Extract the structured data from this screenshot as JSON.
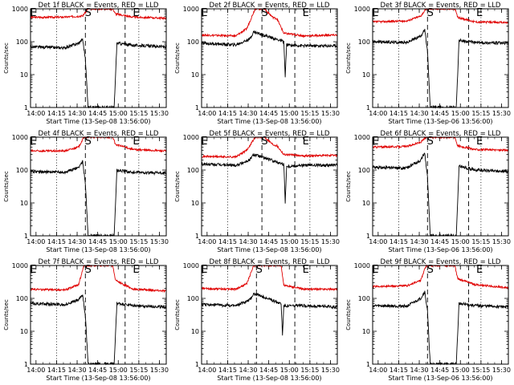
{
  "chart_data": [
    {
      "type": "line",
      "title": "Det 1f BLACK = Events, RED = LLD",
      "xlabel": "Start Time (13-Sep-08 13:56:00)",
      "ylabel": "Counts/sec",
      "xticks": [
        "14:00",
        "14:15",
        "14:30",
        "14:45",
        "15:00",
        "15:15",
        "15:30"
      ],
      "yticks": [
        "1",
        "10",
        "100",
        "1000"
      ],
      "ylim": [
        1,
        1000
      ],
      "yscale": "log",
      "xlim": [
        "13:56",
        "15:35"
      ],
      "markers": [
        {
          "label": "E",
          "t": "13:58"
        },
        {
          "label": "S",
          "t": "14:38"
        },
        {
          "label": "E",
          "t": "15:13"
        }
      ],
      "red_profile": [
        [
          0,
          550
        ],
        [
          25,
          560
        ],
        [
          38,
          610
        ],
        [
          42,
          1000
        ],
        [
          60,
          1000
        ],
        [
          62,
          700
        ],
        [
          75,
          560
        ],
        [
          99,
          520
        ]
      ],
      "black_profile": [
        [
          0,
          70
        ],
        [
          25,
          65
        ],
        [
          35,
          90
        ],
        [
          38,
          120
        ],
        [
          40,
          30
        ],
        [
          42,
          1
        ],
        [
          61,
          1
        ],
        [
          62,
          9
        ],
        [
          63,
          90
        ],
        [
          75,
          78
        ],
        [
          99,
          70
        ]
      ]
    },
    {
      "type": "line",
      "title": "Det 2f BLACK = Events, RED = LLD",
      "xlabel": "Start Time (13-Sep-08 13:56:00)",
      "ylabel": "Counts/sec",
      "xticks": [
        "14:00",
        "14:15",
        "14:30",
        "14:45",
        "15:00",
        "15:15",
        "15:30"
      ],
      "yticks": [
        "1",
        "10",
        "100",
        "1000"
      ],
      "ylim": [
        1,
        1000
      ],
      "yscale": "log",
      "xlim": [
        "13:56",
        "15:35"
      ],
      "markers": [
        {
          "label": "E",
          "t": "13:58"
        },
        {
          "label": "S",
          "t": "14:42"
        },
        {
          "label": "E",
          "t": "15:12"
        }
      ],
      "red_profile": [
        [
          0,
          160
        ],
        [
          25,
          150
        ],
        [
          33,
          250
        ],
        [
          39,
          1000
        ],
        [
          46,
          1000
        ],
        [
          48,
          800
        ],
        [
          52,
          550
        ],
        [
          55,
          500
        ],
        [
          60,
          180
        ],
        [
          75,
          150
        ],
        [
          99,
          160
        ]
      ],
      "black_profile": [
        [
          0,
          90
        ],
        [
          25,
          80
        ],
        [
          35,
          120
        ],
        [
          38,
          200
        ],
        [
          60,
          100
        ],
        [
          61,
          8
        ],
        [
          62,
          80
        ],
        [
          75,
          75
        ],
        [
          99,
          75
        ]
      ]
    },
    {
      "type": "line",
      "title": "Det 3f BLACK = Events, RED = LLD",
      "xlabel": "Start Time (13-Sep-06 13:56:00)",
      "ylabel": "Counts/sec",
      "xticks": [
        "14:00",
        "14:15",
        "14:30",
        "14:45",
        "15:00",
        "15:15",
        "15:30"
      ],
      "yticks": [
        "1",
        "10",
        "100",
        "1000"
      ],
      "ylim": [
        1,
        1000
      ],
      "yscale": "log",
      "xlim": [
        "13:56",
        "15:35"
      ],
      "markers": [
        {
          "label": "E",
          "t": "13:58"
        },
        {
          "label": "S",
          "t": "14:38"
        },
        {
          "label": "E",
          "t": "15:14"
        }
      ],
      "red_profile": [
        [
          0,
          400
        ],
        [
          25,
          430
        ],
        [
          35,
          600
        ],
        [
          39,
          1000
        ],
        [
          60,
          1000
        ],
        [
          62,
          550
        ],
        [
          75,
          400
        ],
        [
          99,
          380
        ]
      ],
      "black_profile": [
        [
          0,
          100
        ],
        [
          25,
          95
        ],
        [
          35,
          150
        ],
        [
          38,
          230
        ],
        [
          40,
          50
        ],
        [
          42,
          1
        ],
        [
          61,
          1
        ],
        [
          62,
          10
        ],
        [
          63,
          110
        ],
        [
          75,
          95
        ],
        [
          99,
          90
        ]
      ]
    },
    {
      "type": "line",
      "title": "Det 4f BLACK = Events, RED = LLD",
      "xlabel": "Start Time (13-Sep-08 13:56:00)",
      "ylabel": "Counts/sec",
      "xticks": [
        "14:00",
        "14:15",
        "14:30",
        "14:45",
        "15:00",
        "15:15",
        "15:30"
      ],
      "yticks": [
        "1",
        "10",
        "100",
        "1000"
      ],
      "ylim": [
        1,
        1000
      ],
      "yscale": "log",
      "xlim": [
        "13:56",
        "15:35"
      ],
      "markers": [
        {
          "label": "E",
          "t": "13:58"
        },
        {
          "label": "S",
          "t": "14:38"
        },
        {
          "label": "E",
          "t": "15:13"
        }
      ],
      "red_profile": [
        [
          0,
          380
        ],
        [
          25,
          380
        ],
        [
          35,
          500
        ],
        [
          39,
          1000
        ],
        [
          60,
          1000
        ],
        [
          62,
          600
        ],
        [
          75,
          420
        ],
        [
          99,
          380
        ]
      ],
      "black_profile": [
        [
          0,
          90
        ],
        [
          25,
          85
        ],
        [
          35,
          120
        ],
        [
          38,
          180
        ],
        [
          40,
          40
        ],
        [
          42,
          1
        ],
        [
          61,
          1
        ],
        [
          62,
          10
        ],
        [
          63,
          100
        ],
        [
          75,
          85
        ],
        [
          99,
          80
        ]
      ]
    },
    {
      "type": "line",
      "title": "Det 5f BLACK = Events, RED = LLD",
      "xlabel": "Start Time (13-Sep-08 13:56:00)",
      "ylabel": "Counts/sec",
      "xticks": [
        "14:00",
        "14:15",
        "14:30",
        "14:45",
        "15:00",
        "15:15",
        "15:30"
      ],
      "yticks": [
        "1",
        "10",
        "100",
        "1000"
      ],
      "ylim": [
        1,
        1000
      ],
      "yscale": "log",
      "xlim": [
        "13:56",
        "15:35"
      ],
      "markers": [
        {
          "label": "E",
          "t": "13:58"
        },
        {
          "label": "S",
          "t": "14:42"
        },
        {
          "label": "E",
          "t": "15:12"
        }
      ],
      "red_profile": [
        [
          0,
          260
        ],
        [
          25,
          250
        ],
        [
          33,
          400
        ],
        [
          39,
          1000
        ],
        [
          46,
          1000
        ],
        [
          48,
          850
        ],
        [
          52,
          600
        ],
        [
          55,
          550
        ],
        [
          60,
          300
        ],
        [
          75,
          270
        ],
        [
          99,
          280
        ]
      ],
      "black_profile": [
        [
          0,
          150
        ],
        [
          25,
          140
        ],
        [
          35,
          200
        ],
        [
          38,
          300
        ],
        [
          60,
          150
        ],
        [
          61,
          10
        ],
        [
          62,
          130
        ],
        [
          75,
          140
        ],
        [
          99,
          140
        ]
      ]
    },
    {
      "type": "line",
      "title": "Det 6f BLACK = Events, RED = LLD",
      "xlabel": "Start Time (13-Sep-06 13:56:00)",
      "ylabel": "Counts/sec",
      "xticks": [
        "14:00",
        "14:15",
        "14:30",
        "14:45",
        "15:00",
        "15:15",
        "15:30"
      ],
      "yticks": [
        "1",
        "10",
        "100",
        "1000"
      ],
      "ylim": [
        1,
        1000
      ],
      "yscale": "log",
      "xlim": [
        "13:56",
        "15:35"
      ],
      "markers": [
        {
          "label": "E",
          "t": "13:58"
        },
        {
          "label": "S",
          "t": "14:38"
        },
        {
          "label": "E",
          "t": "15:14"
        }
      ],
      "red_profile": [
        [
          0,
          500
        ],
        [
          25,
          520
        ],
        [
          35,
          700
        ],
        [
          39,
          1000
        ],
        [
          60,
          1000
        ],
        [
          62,
          550
        ],
        [
          75,
          420
        ],
        [
          99,
          400
        ]
      ],
      "black_profile": [
        [
          0,
          120
        ],
        [
          25,
          115
        ],
        [
          35,
          200
        ],
        [
          38,
          330
        ],
        [
          40,
          60
        ],
        [
          42,
          1
        ],
        [
          61,
          1
        ],
        [
          62,
          10
        ],
        [
          63,
          130
        ],
        [
          75,
          100
        ],
        [
          99,
          90
        ]
      ]
    },
    {
      "type": "line",
      "title": "Det 7f BLACK = Events, RED = LLD",
      "xlabel": "Start Time (13-Sep-08 13:56:00)",
      "ylabel": "Counts/sec",
      "xticks": [
        "14:00",
        "14:15",
        "14:30",
        "14:45",
        "15:00",
        "15:15",
        "15:30"
      ],
      "yticks": [
        "1",
        "10",
        "100",
        "1000"
      ],
      "ylim": [
        1,
        1000
      ],
      "yscale": "log",
      "xlim": [
        "13:56",
        "15:35"
      ],
      "markers": [
        {
          "label": "E",
          "t": "13:58"
        },
        {
          "label": "S",
          "t": "14:38"
        },
        {
          "label": "E",
          "t": "15:13"
        }
      ],
      "red_profile": [
        [
          0,
          190
        ],
        [
          25,
          180
        ],
        [
          35,
          260
        ],
        [
          39,
          1000
        ],
        [
          60,
          1000
        ],
        [
          62,
          350
        ],
        [
          75,
          190
        ],
        [
          99,
          170
        ]
      ],
      "black_profile": [
        [
          0,
          70
        ],
        [
          25,
          65
        ],
        [
          35,
          90
        ],
        [
          38,
          130
        ],
        [
          40,
          30
        ],
        [
          42,
          1
        ],
        [
          61,
          1
        ],
        [
          62,
          8
        ],
        [
          63,
          70
        ],
        [
          75,
          60
        ],
        [
          99,
          55
        ]
      ]
    },
    {
      "type": "line",
      "title": "Det 8f BLACK = Events, RED = LLD",
      "xlabel": "Start Time (13-Sep-08 13:56:00)",
      "ylabel": "Counts/sec",
      "xticks": [
        "14:00",
        "14:15",
        "14:30",
        "14:45",
        "15:00",
        "15:15",
        "15:30"
      ],
      "yticks": [
        "1",
        "10",
        "100",
        "1000"
      ],
      "ylim": [
        1,
        1000
      ],
      "yscale": "log",
      "xlim": [
        "13:56",
        "15:35"
      ],
      "markers": [
        {
          "label": "E",
          "t": "13:58"
        },
        {
          "label": "S",
          "t": "14:38"
        },
        {
          "label": "E",
          "t": "15:12"
        }
      ],
      "red_profile": [
        [
          0,
          200
        ],
        [
          25,
          190
        ],
        [
          33,
          280
        ],
        [
          38,
          1000
        ],
        [
          58,
          1000
        ],
        [
          60,
          250
        ],
        [
          75,
          190
        ],
        [
          99,
          190
        ]
      ],
      "black_profile": [
        [
          0,
          65
        ],
        [
          25,
          60
        ],
        [
          35,
          90
        ],
        [
          38,
          140
        ],
        [
          58,
          70
        ],
        [
          59,
          8
        ],
        [
          60,
          60
        ],
        [
          75,
          60
        ],
        [
          99,
          55
        ]
      ]
    },
    {
      "type": "line",
      "title": "Det 9f BLACK = Events, RED = LLD",
      "xlabel": "Start Time (13-Sep-06 13:56:00)",
      "ylabel": "Counts/sec",
      "xticks": [
        "14:00",
        "14:15",
        "14:30",
        "14:45",
        "15:00",
        "15:15",
        "15:30"
      ],
      "yticks": [
        "1",
        "10",
        "100",
        "1000"
      ],
      "ylim": [
        1,
        1000
      ],
      "yscale": "log",
      "xlim": [
        "13:56",
        "15:35"
      ],
      "markers": [
        {
          "label": "E",
          "t": "13:58"
        },
        {
          "label": "S",
          "t": "14:38"
        },
        {
          "label": "E",
          "t": "15:14"
        }
      ],
      "red_profile": [
        [
          0,
          230
        ],
        [
          25,
          240
        ],
        [
          35,
          350
        ],
        [
          39,
          1000
        ],
        [
          60,
          1000
        ],
        [
          62,
          400
        ],
        [
          75,
          260
        ],
        [
          99,
          210
        ]
      ],
      "black_profile": [
        [
          0,
          60
        ],
        [
          25,
          58
        ],
        [
          35,
          100
        ],
        [
          38,
          160
        ],
        [
          40,
          40
        ],
        [
          42,
          1
        ],
        [
          61,
          1
        ],
        [
          62,
          8
        ],
        [
          63,
          70
        ],
        [
          75,
          60
        ],
        [
          99,
          55
        ]
      ]
    }
  ]
}
